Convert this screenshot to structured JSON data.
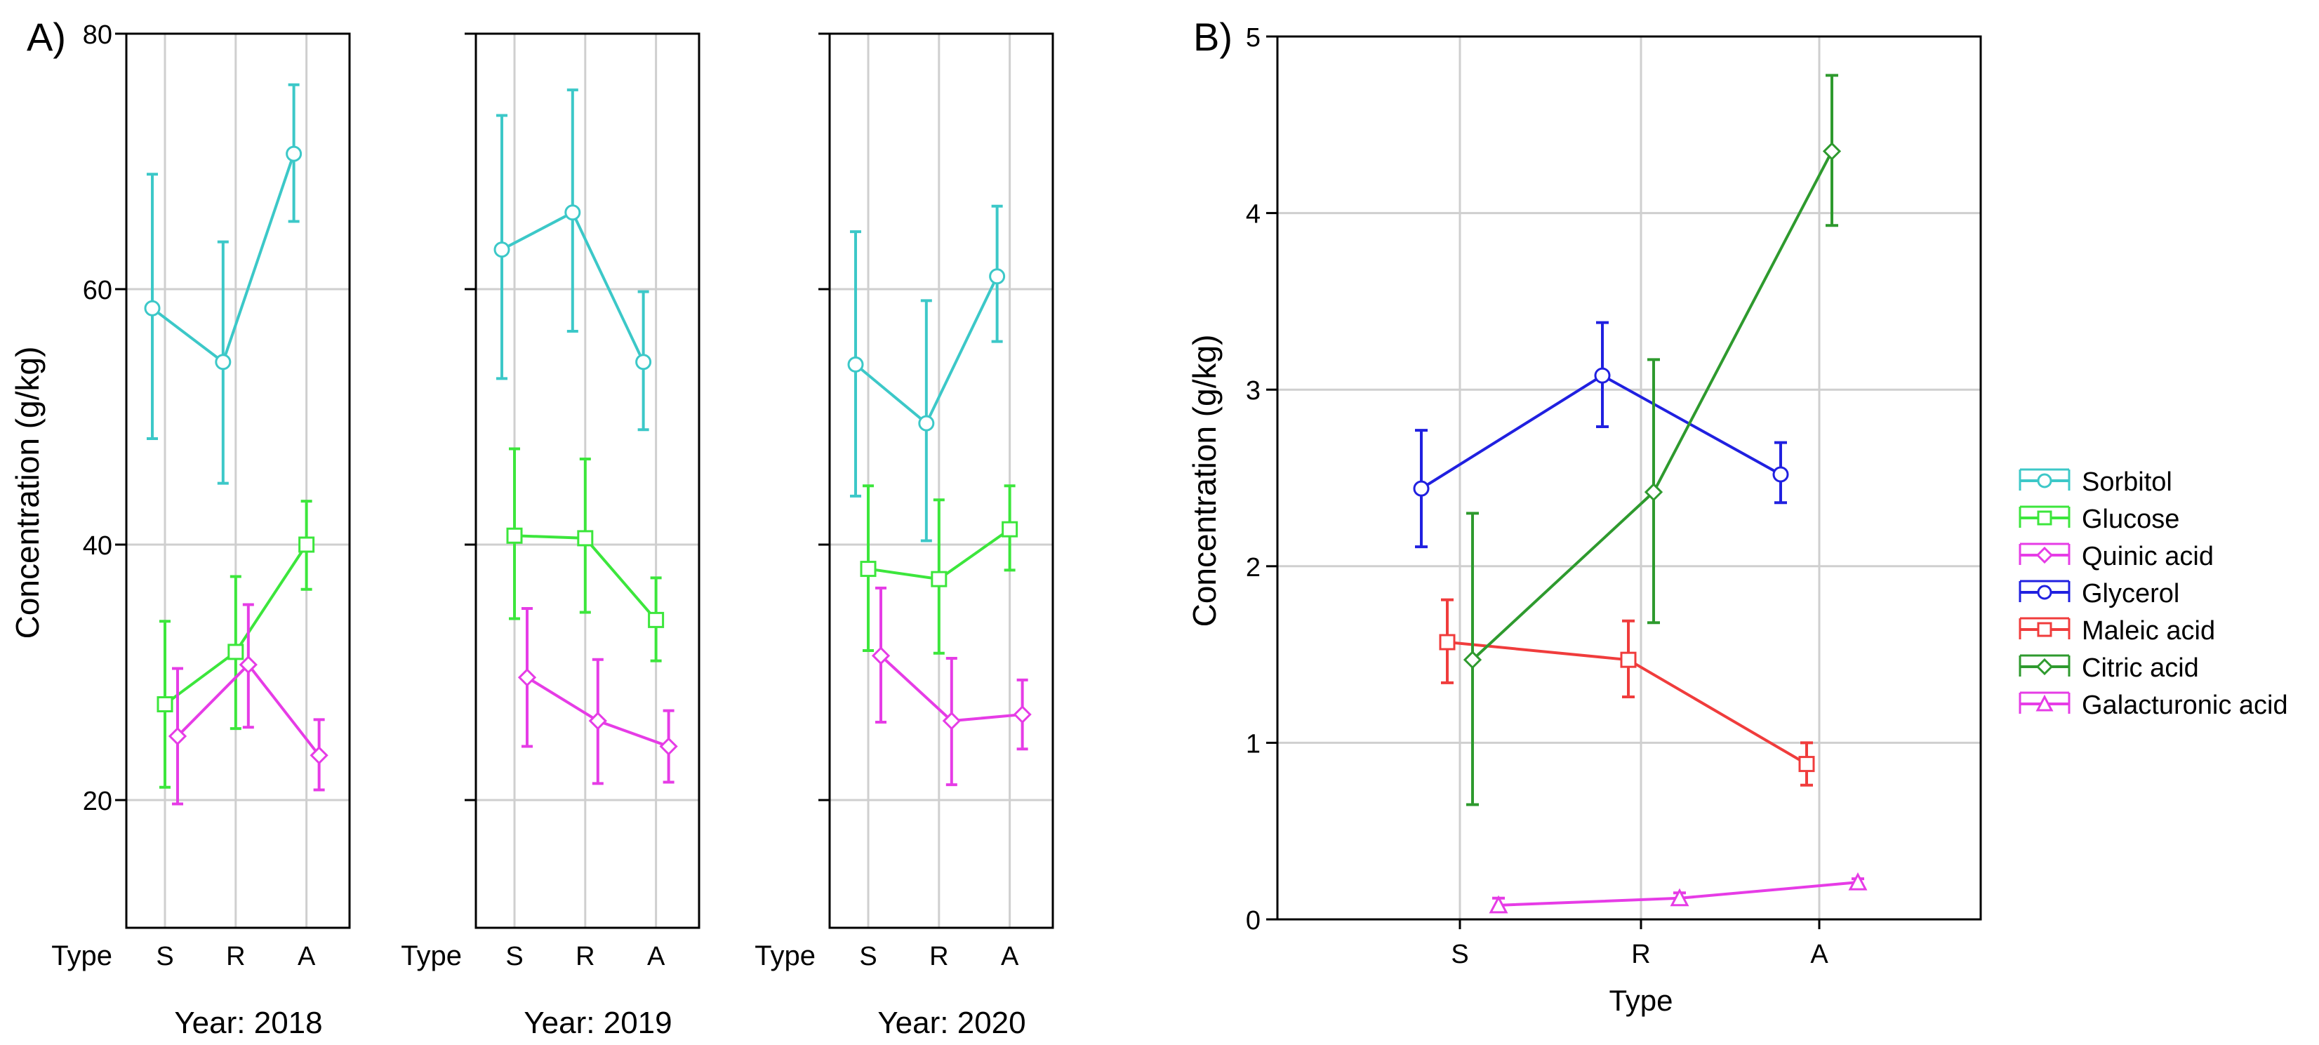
{
  "panel_a": {
    "label": "A)",
    "ylabel": "Concentration (g/kg)",
    "x_axis_label": "Type",
    "colors": {
      "Sorbitol": "#3cc8c8",
      "Glucose": "#3ce63c",
      "Quinic acid": "#e63ce6"
    },
    "chart_data": [
      {
        "type": "line",
        "title": "Year: 2018",
        "categories": [
          "S",
          "R",
          "A"
        ],
        "ylim": [
          10,
          80
        ],
        "yticks": [
          20,
          40,
          60,
          80
        ],
        "series": [
          {
            "name": "Sorbitol",
            "values": [
              58.5,
              54.3,
              70.6
            ],
            "lower": [
              48.3,
              44.8,
              65.3
            ],
            "upper": [
              69.0,
              63.7,
              76.0
            ],
            "marker": "circle"
          },
          {
            "name": "Glucose",
            "values": [
              27.5,
              31.6,
              40.0
            ],
            "lower": [
              21.0,
              25.6,
              36.5
            ],
            "upper": [
              34.0,
              37.5,
              43.4
            ],
            "marker": "square"
          },
          {
            "name": "Quinic acid",
            "values": [
              25.0,
              30.6,
              23.5
            ],
            "lower": [
              19.7,
              25.7,
              20.8
            ],
            "upper": [
              30.3,
              35.3,
              26.3
            ],
            "marker": "diamond"
          }
        ]
      },
      {
        "type": "line",
        "title": "Year: 2019",
        "categories": [
          "S",
          "R",
          "A"
        ],
        "ylim": [
          10,
          80
        ],
        "yticks": [
          20,
          40,
          60,
          80
        ],
        "series": [
          {
            "name": "Sorbitol",
            "values": [
              63.1,
              66.0,
              54.3
            ],
            "lower": [
              53.0,
              56.7,
              49.0
            ],
            "upper": [
              73.6,
              75.6,
              59.8
            ],
            "marker": "circle"
          },
          {
            "name": "Glucose",
            "values": [
              40.7,
              40.5,
              34.1
            ],
            "lower": [
              34.2,
              34.7,
              30.9
            ],
            "upper": [
              47.5,
              46.7,
              37.4
            ],
            "marker": "square"
          },
          {
            "name": "Quinic acid",
            "values": [
              29.6,
              26.2,
              24.2
            ],
            "lower": [
              24.2,
              21.3,
              21.4
            ],
            "upper": [
              35.0,
              31.0,
              27.0
            ],
            "marker": "diamond"
          }
        ]
      },
      {
        "type": "line",
        "title": "Year: 2020",
        "categories": [
          "S",
          "R",
          "A"
        ],
        "ylim": [
          10,
          80
        ],
        "yticks": [
          20,
          40,
          60,
          80
        ],
        "series": [
          {
            "name": "Sorbitol",
            "values": [
              54.1,
              49.5,
              61.0
            ],
            "lower": [
              43.8,
              40.3,
              55.9
            ],
            "upper": [
              64.5,
              59.1,
              66.5
            ],
            "marker": "circle"
          },
          {
            "name": "Glucose",
            "values": [
              38.1,
              37.3,
              41.2
            ],
            "lower": [
              31.7,
              31.5,
              38.0
            ],
            "upper": [
              44.6,
              43.5,
              44.6
            ],
            "marker": "square"
          },
          {
            "name": "Quinic acid",
            "values": [
              31.3,
              26.2,
              26.7
            ],
            "lower": [
              26.1,
              21.2,
              24.0
            ],
            "upper": [
              36.6,
              31.1,
              29.4
            ],
            "marker": "diamond"
          }
        ]
      }
    ]
  },
  "panel_b": {
    "label": "B)",
    "chart_data": {
      "type": "line",
      "title": "",
      "xlabel": "Type",
      "ylabel": "Concentration (g/kg)",
      "categories": [
        "S",
        "R",
        "A"
      ],
      "ylim": [
        0,
        5
      ],
      "yticks": [
        0,
        1,
        2,
        3,
        4,
        5
      ],
      "series": [
        {
          "name": "Glycerol",
          "color": "#2020e0",
          "marker": "circle",
          "values": [
            2.44,
            3.08,
            2.52
          ],
          "lower": [
            2.11,
            2.79,
            2.36
          ],
          "upper": [
            2.77,
            3.38,
            2.7
          ]
        },
        {
          "name": "Maleic acid",
          "color": "#f03c3c",
          "marker": "square",
          "values": [
            1.57,
            1.47,
            0.88
          ],
          "lower": [
            1.34,
            1.26,
            0.76
          ],
          "upper": [
            1.81,
            1.69,
            1.0
          ]
        },
        {
          "name": "Citric acid",
          "color": "#2e9a2e",
          "marker": "diamond",
          "values": [
            1.47,
            2.42,
            4.35
          ],
          "lower": [
            0.65,
            1.68,
            3.93
          ],
          "upper": [
            2.3,
            3.17,
            4.78
          ]
        },
        {
          "name": "Galacturonic acid",
          "color": "#e63ce6",
          "marker": "triangle",
          "values": [
            0.08,
            0.12,
            0.21
          ],
          "lower": [
            0.05,
            0.1,
            0.19
          ],
          "upper": [
            0.12,
            0.15,
            0.23
          ]
        }
      ]
    }
  },
  "legend": {
    "placement": "right",
    "entries": [
      {
        "label": "Sorbitol",
        "color": "#3cc8c8",
        "marker": "circle"
      },
      {
        "label": "Glucose",
        "color": "#3ce63c",
        "marker": "square"
      },
      {
        "label": "Quinic acid",
        "color": "#e63ce6",
        "marker": "diamond"
      },
      {
        "label": "Glycerol",
        "color": "#2020e0",
        "marker": "circle"
      },
      {
        "label": "Maleic acid",
        "color": "#f03c3c",
        "marker": "square"
      },
      {
        "label": "Citric acid",
        "color": "#2e9a2e",
        "marker": "diamond"
      },
      {
        "label": "Galacturonic acid",
        "color": "#e63ce6",
        "marker": "triangle"
      }
    ]
  }
}
